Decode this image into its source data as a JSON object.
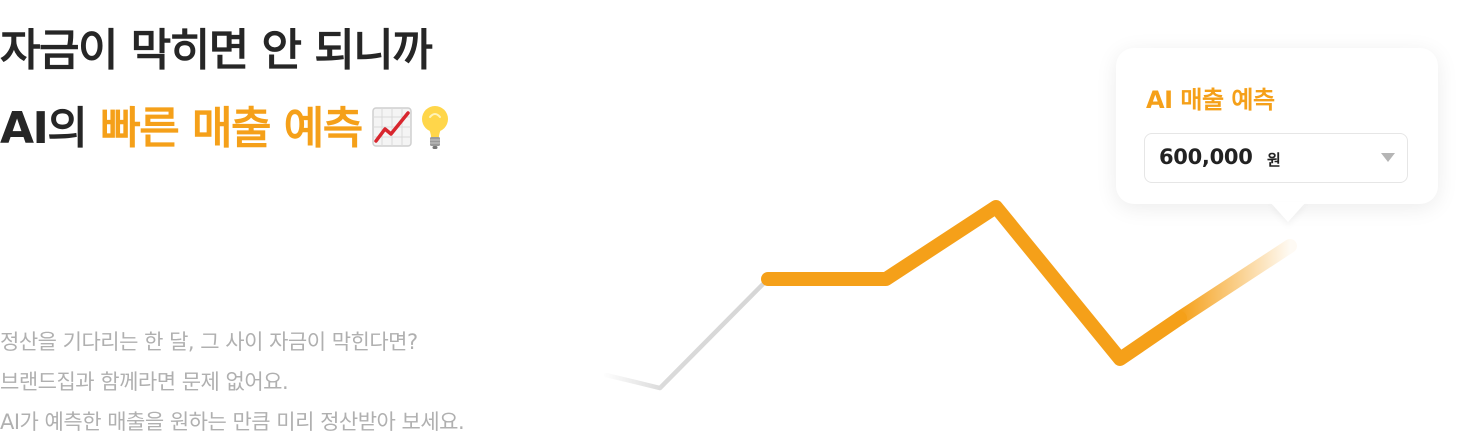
{
  "headline": {
    "line1": "자금이 막히면 안 되니까",
    "line2_prefix": "AI의 ",
    "line2_accent": "빠른 매출 예측",
    "icons": [
      "chart-increasing-icon",
      "light-bulb-icon"
    ]
  },
  "description": {
    "lines": [
      "정산을 기다리는 한 달, 그 사이 자금이 막힌다면?",
      "브랜드집과 함께라면 문제 없어요.",
      "AI가 예측한 매출을 원하는 만큼 미리 정산받아 보세요."
    ]
  },
  "forecast_card": {
    "title": "AI 매출 예측",
    "amount": "600,000",
    "unit": "원",
    "dropdown_icon": "chevron-down-icon"
  },
  "colors": {
    "accent": "#f5a019",
    "heading": "#262626",
    "body_text": "#b0b0b0",
    "line_past": "#d6d6d6"
  }
}
